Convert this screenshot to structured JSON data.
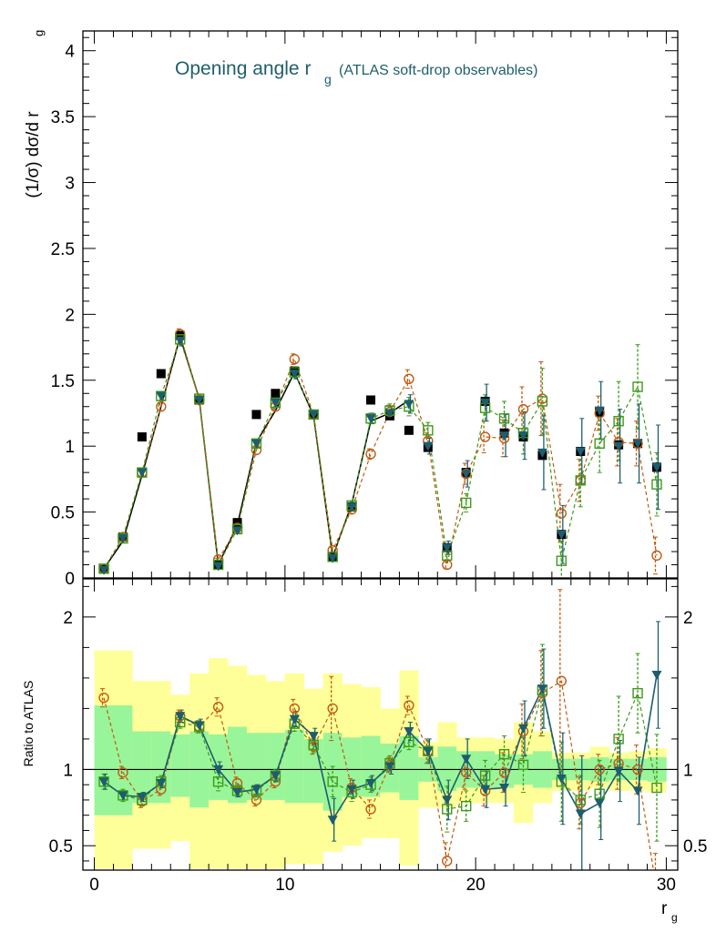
{
  "chart_data": {
    "type": "scatter",
    "title": "Opening angle r",
    "title_sub": "g",
    "title_note": "(ATLAS soft-drop observables)",
    "title_color": "#1f5f6b",
    "ylabel_main": "(1/σ) dσ/d r",
    "ylabel_main_sub": "g",
    "ylabel_ratio": "Ratio to ATLAS",
    "xlabel": "r",
    "xlabel_sub": "g",
    "xlim": [
      -0.6,
      30.6
    ],
    "ylim_main": [
      0,
      4.15
    ],
    "ylim_ratio": [
      0.34,
      2.25
    ],
    "x_ticks": [
      "0",
      "10",
      "20",
      "30"
    ],
    "y_ticks_main": [
      "0",
      "0.5",
      "1",
      "1.5",
      "2",
      "2.5",
      "3",
      "3.5",
      "4"
    ],
    "y_ticks_ratio": [
      "0.5",
      "1",
      "2"
    ],
    "x": [
      0.5,
      1.5,
      2.5,
      3.5,
      4.5,
      5.5,
      6.5,
      7.5,
      8.5,
      9.5,
      10.5,
      11.5,
      12.5,
      13.5,
      14.5,
      15.5,
      16.5,
      17.5,
      18.5,
      19.5,
      20.5,
      21.5,
      22.5,
      23.5,
      24.5,
      25.5,
      26.5,
      27.5,
      28.5,
      29.5
    ],
    "data": {
      "color": "#000000",
      "values": [
        0.07,
        0.31,
        1.07,
        1.55,
        1.84,
        1.35,
        0.1,
        0.42,
        1.24,
        1.4,
        1.57,
        1.24,
        0.16,
        0.54,
        1.35,
        1.23,
        1.12,
        0.99,
        0.23,
        0.8,
        1.34,
        1.1,
        1.07,
        0.93,
        0.33,
        0.96,
        1.26,
        1.01,
        1.02,
        0.84
      ],
      "curve_x": [
        0.5,
        1.5,
        2.5,
        3.5,
        4.5,
        5.5,
        6.5,
        7.5,
        8.5,
        9.5,
        10.5,
        11.5,
        12.5,
        13.5,
        14.5,
        15.5,
        16.5
      ],
      "curve_y": [
        0.07,
        0.28,
        0.78,
        1.3,
        1.83,
        1.36,
        0.1,
        0.4,
        1.03,
        1.27,
        1.56,
        1.23,
        0.16,
        0.56,
        1.19,
        1.25,
        1.35
      ]
    },
    "series": [
      {
        "color": "#c05a10",
        "marker": "circle",
        "values": [
          0.07,
          0.31,
          0.8,
          1.3,
          1.85,
          1.35,
          0.14,
          0.38,
          0.97,
          1.3,
          1.66,
          1.24,
          0.21,
          0.52,
          0.94,
          1.26,
          1.51,
          1.04,
          0.1,
          0.79,
          1.07,
          1.06,
          1.28,
          1.36,
          0.49,
          0.74,
          1.25,
          1.03,
          1.02,
          0.17
        ],
        "errors": [
          0.01,
          0.02,
          0.03,
          0.03,
          0.04,
          0.03,
          0.01,
          0.02,
          0.03,
          0.03,
          0.04,
          0.03,
          0.02,
          0.03,
          0.04,
          0.05,
          0.07,
          0.06,
          0.03,
          0.08,
          0.12,
          0.14,
          0.17,
          0.28,
          0.22,
          0.16,
          0.13,
          0.18,
          0.17,
          0.14
        ],
        "ratio": [
          1.47,
          0.98,
          0.79,
          0.87,
          1.35,
          1.28,
          1.41,
          0.91,
          0.8,
          0.92,
          1.4,
          1.15,
          1.4,
          0.88,
          0.74,
          1.03,
          1.42,
          1.12,
          0.4,
          0.98,
          0.86,
          0.98,
          1.25,
          1.5,
          1.58,
          0.78,
          1.0,
          1.04,
          1.0,
          0.2
        ],
        "ratio_errors": [
          0.06,
          0.04,
          0.04,
          0.04,
          0.04,
          0.04,
          0.06,
          0.04,
          0.04,
          0.04,
          0.06,
          0.05,
          0.21,
          0.06,
          0.06,
          0.05,
          0.06,
          0.08,
          0.12,
          0.11,
          0.1,
          0.13,
          0.18,
          0.28,
          0.6,
          0.17,
          0.1,
          0.17,
          0.16,
          0.25
        ]
      },
      {
        "color": "#3c9a18",
        "marker": "square",
        "values": [
          0.07,
          0.3,
          0.8,
          1.38,
          1.81,
          1.36,
          0.1,
          0.37,
          1.02,
          1.33,
          1.56,
          1.24,
          0.16,
          0.55,
          1.21,
          1.27,
          1.3,
          1.12,
          0.17,
          0.57,
          1.29,
          1.21,
          1.1,
          1.34,
          0.13,
          0.74,
          1.02,
          1.19,
          1.45,
          0.71
        ],
        "errors": [
          0.01,
          0.02,
          0.03,
          0.03,
          0.04,
          0.03,
          0.01,
          0.02,
          0.03,
          0.03,
          0.04,
          0.03,
          0.02,
          0.03,
          0.04,
          0.05,
          0.07,
          0.06,
          0.03,
          0.07,
          0.1,
          0.13,
          0.16,
          0.25,
          0.15,
          0.2,
          0.22,
          0.3,
          0.32,
          0.24
        ],
        "ratio": [
          0.92,
          0.83,
          0.8,
          0.92,
          1.31,
          1.28,
          0.92,
          0.86,
          0.86,
          0.96,
          1.3,
          1.16,
          0.92,
          0.85,
          0.9,
          1.04,
          1.18,
          1.12,
          0.74,
          0.76,
          0.96,
          1.1,
          1.03,
          1.52,
          0.92,
          0.8,
          0.84,
          1.2,
          1.5,
          0.88
        ],
        "ratio_errors": [
          0.05,
          0.04,
          0.04,
          0.04,
          0.04,
          0.04,
          0.06,
          0.04,
          0.04,
          0.04,
          0.05,
          0.05,
          0.1,
          0.06,
          0.05,
          0.05,
          0.05,
          0.07,
          0.15,
          0.1,
          0.1,
          0.12,
          0.18,
          0.3,
          0.26,
          0.16,
          0.22,
          0.28,
          0.26,
          0.35
        ]
      },
      {
        "color": "#1d5d6e",
        "marker": "triangle-down",
        "values": [
          0.06,
          0.3,
          0.8,
          1.38,
          1.8,
          1.35,
          0.09,
          0.36,
          1.02,
          1.33,
          1.55,
          1.24,
          0.15,
          0.54,
          1.21,
          1.25,
          1.32,
          1.0,
          0.23,
          0.79,
          1.33,
          1.08,
          1.08,
          0.95,
          0.33,
          0.96,
          1.27,
          1.0,
          1.02,
          0.84
        ],
        "errors": [
          0.01,
          0.02,
          0.03,
          0.03,
          0.04,
          0.03,
          0.01,
          0.02,
          0.03,
          0.03,
          0.04,
          0.03,
          0.02,
          0.03,
          0.04,
          0.05,
          0.07,
          0.06,
          0.05,
          0.1,
          0.14,
          0.16,
          0.18,
          0.28,
          0.22,
          0.25,
          0.22,
          0.28,
          0.3,
          0.32
        ],
        "ratio": [
          0.92,
          0.83,
          0.82,
          0.91,
          1.35,
          1.29,
          1.0,
          0.85,
          0.87,
          0.96,
          1.33,
          1.22,
          0.67,
          0.87,
          0.91,
          1.02,
          1.25,
          1.12,
          0.8,
          1.07,
          0.87,
          0.88,
          1.27,
          1.53,
          0.94,
          0.71,
          0.78,
          0.99,
          0.86,
          1.62
        ],
        "ratio_errors": [
          0.05,
          0.03,
          0.03,
          0.03,
          0.04,
          0.04,
          0.05,
          0.03,
          0.03,
          0.04,
          0.05,
          0.05,
          0.14,
          0.06,
          0.05,
          0.05,
          0.06,
          0.08,
          0.13,
          0.13,
          0.12,
          0.12,
          0.18,
          0.26,
          0.3,
          0.38,
          0.24,
          0.2,
          0.22,
          0.35
        ]
      }
    ],
    "bands": {
      "inner_color": "#99f599",
      "outer_color": "#ffff99",
      "inner_low": [
        0.7,
        0.7,
        0.78,
        0.78,
        0.82,
        0.75,
        0.8,
        0.78,
        0.8,
        0.8,
        0.78,
        0.78,
        0.73,
        0.82,
        0.82,
        0.85,
        0.8,
        0.92,
        0.86,
        0.88,
        0.88,
        0.88,
        0.9,
        0.88,
        0.93,
        0.93,
        0.92,
        0.93,
        0.93,
        0.92
      ],
      "inner_high": [
        1.42,
        1.42,
        1.25,
        1.25,
        1.23,
        1.25,
        1.23,
        1.28,
        1.24,
        1.24,
        1.26,
        1.2,
        1.24,
        1.21,
        1.22,
        1.17,
        1.22,
        1.08,
        1.15,
        1.12,
        1.12,
        1.1,
        1.1,
        1.12,
        1.07,
        1.07,
        1.08,
        1.07,
        1.07,
        1.08
      ],
      "outer_low": [
        0.35,
        0.35,
        0.48,
        0.48,
        0.53,
        0.35,
        0.35,
        0.35,
        0.35,
        0.35,
        0.38,
        0.38,
        0.46,
        0.5,
        0.55,
        0.55,
        0.37,
        0.75,
        0.75,
        0.78,
        0.78,
        0.78,
        0.65,
        0.78,
        0.86,
        0.86,
        0.88,
        0.86,
        0.86,
        0.85
      ],
      "outer_high": [
        1.78,
        1.78,
        1.58,
        1.58,
        1.49,
        1.63,
        1.73,
        1.68,
        1.62,
        1.58,
        1.63,
        1.53,
        1.63,
        1.56,
        1.54,
        1.4,
        1.65,
        1.18,
        1.31,
        1.21,
        1.21,
        1.2,
        1.31,
        1.25,
        1.11,
        1.11,
        1.15,
        1.11,
        1.12,
        1.14
      ]
    }
  }
}
